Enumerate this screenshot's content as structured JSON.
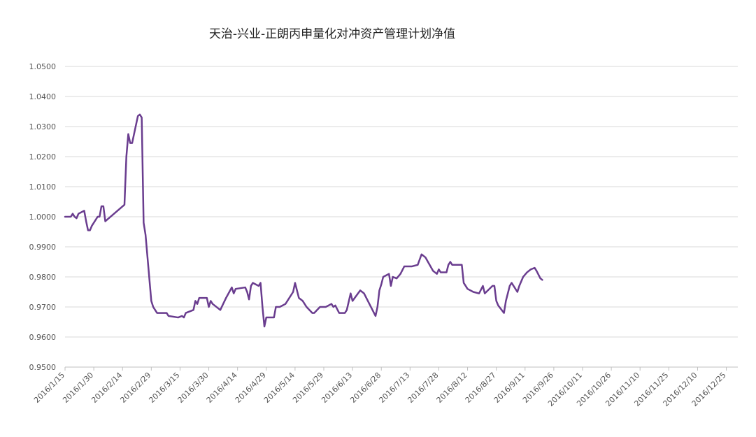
{
  "chart_data": {
    "type": "line",
    "title": "天治-兴业-正朗丙申量化对冲资产管理计划净值",
    "xlabel": "",
    "ylabel": "",
    "x_range": [
      "2016-01-15",
      "2016-12-31"
    ],
    "ylim": [
      0.95,
      1.05
    ],
    "grid": true,
    "legend": "none",
    "line_color": "#6a3d8f",
    "y_ticks": [
      "0.9500",
      "0.9600",
      "0.9700",
      "0.9800",
      "0.9900",
      "1.0000",
      "1.0100",
      "1.0200",
      "1.0300",
      "1.0400",
      "1.0500"
    ],
    "x_ticks": [
      "2016/1/15",
      "2016/1/30",
      "2016/2/14",
      "2016/2/29",
      "2016/3/15",
      "2016/3/30",
      "2016/4/14",
      "2016/4/29",
      "2016/5/14",
      "2016/5/29",
      "2016/6/13",
      "2016/6/28",
      "2016/7/13",
      "2016/7/28",
      "2016/8/12",
      "2016/8/27",
      "2016/9/11",
      "2016/9/26",
      "2016/10/11",
      "2016/10/26",
      "2016/11/10",
      "2016/11/25",
      "2016/12/10",
      "2016/12/25"
    ],
    "series": [
      {
        "points": [
          [
            "2016-01-15",
            1.0
          ],
          [
            "2016-01-18",
            1.0
          ],
          [
            "2016-01-19",
            1.001
          ],
          [
            "2016-01-20",
            1.0
          ],
          [
            "2016-01-21",
            0.9995
          ],
          [
            "2016-01-22",
            1.001
          ],
          [
            "2016-01-25",
            1.002
          ],
          [
            "2016-01-26",
            0.9985
          ],
          [
            "2016-01-27",
            0.9955
          ],
          [
            "2016-01-28",
            0.9955
          ],
          [
            "2016-01-29",
            0.997
          ],
          [
            "2016-02-01",
            1.0
          ],
          [
            "2016-02-02",
            1.0
          ],
          [
            "2016-02-03",
            1.0035
          ],
          [
            "2016-02-04",
            1.0035
          ],
          [
            "2016-02-05",
            0.9985
          ],
          [
            "2016-02-15",
            1.004
          ],
          [
            "2016-02-16",
            1.02
          ],
          [
            "2016-02-17",
            1.0275
          ],
          [
            "2016-02-18",
            1.0245
          ],
          [
            "2016-02-19",
            1.0245
          ],
          [
            "2016-02-22",
            1.0335
          ],
          [
            "2016-02-23",
            1.034
          ],
          [
            "2016-02-24",
            1.033
          ],
          [
            "2016-02-25",
            0.998
          ],
          [
            "2016-02-26",
            0.994
          ],
          [
            "2016-02-29",
            0.972
          ],
          [
            "2016-03-01",
            0.97
          ],
          [
            "2016-03-02",
            0.969
          ],
          [
            "2016-03-03",
            0.968
          ],
          [
            "2016-03-08",
            0.968
          ],
          [
            "2016-03-09",
            0.967
          ],
          [
            "2016-03-14",
            0.9665
          ],
          [
            "2016-03-16",
            0.967
          ],
          [
            "2016-03-17",
            0.9665
          ],
          [
            "2016-03-18",
            0.968
          ],
          [
            "2016-03-22",
            0.969
          ],
          [
            "2016-03-23",
            0.972
          ],
          [
            "2016-03-24",
            0.971
          ],
          [
            "2016-03-25",
            0.973
          ],
          [
            "2016-03-28",
            0.973
          ],
          [
            "2016-03-29",
            0.973
          ],
          [
            "2016-03-30",
            0.97
          ],
          [
            "2016-03-31",
            0.972
          ],
          [
            "2016-04-01",
            0.971
          ],
          [
            "2016-04-05",
            0.969
          ],
          [
            "2016-04-08",
            0.973
          ],
          [
            "2016-04-11",
            0.9765
          ],
          [
            "2016-04-12",
            0.9745
          ],
          [
            "2016-04-13",
            0.976
          ],
          [
            "2016-04-18",
            0.9765
          ],
          [
            "2016-04-19",
            0.975
          ],
          [
            "2016-04-20",
            0.9725
          ],
          [
            "2016-04-21",
            0.977
          ],
          [
            "2016-04-22",
            0.978
          ],
          [
            "2016-04-25",
            0.977
          ],
          [
            "2016-04-26",
            0.978
          ],
          [
            "2016-04-27",
            0.97
          ],
          [
            "2016-04-28",
            0.9635
          ],
          [
            "2016-04-29",
            0.9665
          ],
          [
            "2016-05-03",
            0.9665
          ],
          [
            "2016-05-04",
            0.97
          ],
          [
            "2016-05-05",
            0.97
          ],
          [
            "2016-05-06",
            0.97
          ],
          [
            "2016-05-09",
            0.971
          ],
          [
            "2016-05-13",
            0.975
          ],
          [
            "2016-05-14",
            0.978
          ],
          [
            "2016-05-16",
            0.973
          ],
          [
            "2016-05-18",
            0.972
          ],
          [
            "2016-05-20",
            0.97
          ],
          [
            "2016-05-23",
            0.968
          ],
          [
            "2016-05-24",
            0.968
          ],
          [
            "2016-05-27",
            0.97
          ],
          [
            "2016-05-30",
            0.97
          ],
          [
            "2016-06-02",
            0.971
          ],
          [
            "2016-06-03",
            0.97
          ],
          [
            "2016-06-04",
            0.9705
          ],
          [
            "2016-06-06",
            0.968
          ],
          [
            "2016-06-09",
            0.968
          ],
          [
            "2016-06-10",
            0.969
          ],
          [
            "2016-06-12",
            0.9745
          ],
          [
            "2016-06-13",
            0.972
          ],
          [
            "2016-06-17",
            0.9755
          ],
          [
            "2016-06-19",
            0.9745
          ],
          [
            "2016-06-25",
            0.967
          ],
          [
            "2016-06-26",
            0.97
          ],
          [
            "2016-06-27",
            0.9755
          ],
          [
            "2016-06-28",
            0.9775
          ],
          [
            "2016-06-29",
            0.98
          ],
          [
            "2016-07-02",
            0.981
          ],
          [
            "2016-07-03",
            0.977
          ],
          [
            "2016-07-04",
            0.98
          ],
          [
            "2016-07-06",
            0.9795
          ],
          [
            "2016-07-08",
            0.981
          ],
          [
            "2016-07-10",
            0.9835
          ],
          [
            "2016-07-14",
            0.9835
          ],
          [
            "2016-07-17",
            0.984
          ],
          [
            "2016-07-19",
            0.9875
          ],
          [
            "2016-07-21",
            0.9865
          ],
          [
            "2016-07-25",
            0.982
          ],
          [
            "2016-07-26",
            0.9815
          ],
          [
            "2016-07-27",
            0.981
          ],
          [
            "2016-07-28",
            0.9825
          ],
          [
            "2016-07-29",
            0.9815
          ],
          [
            "2016-08-01",
            0.9815
          ],
          [
            "2016-08-02",
            0.984
          ],
          [
            "2016-08-03",
            0.985
          ],
          [
            "2016-08-04",
            0.984
          ],
          [
            "2016-08-08",
            0.984
          ],
          [
            "2016-08-09",
            0.984
          ],
          [
            "2016-08-10",
            0.978
          ],
          [
            "2016-08-12",
            0.976
          ],
          [
            "2016-08-15",
            0.975
          ],
          [
            "2016-08-18",
            0.9745
          ],
          [
            "2016-08-20",
            0.977
          ],
          [
            "2016-08-21",
            0.9745
          ],
          [
            "2016-08-25",
            0.977
          ],
          [
            "2016-08-26",
            0.977
          ],
          [
            "2016-08-27",
            0.972
          ],
          [
            "2016-08-28",
            0.9705
          ],
          [
            "2016-08-31",
            0.968
          ],
          [
            "2016-09-01",
            0.972
          ],
          [
            "2016-09-03",
            0.977
          ],
          [
            "2016-09-04",
            0.978
          ],
          [
            "2016-09-07",
            0.975
          ],
          [
            "2016-09-08",
            0.977
          ],
          [
            "2016-09-10",
            0.98
          ],
          [
            "2016-09-12",
            0.9815
          ],
          [
            "2016-09-14",
            0.9825
          ],
          [
            "2016-09-16",
            0.983
          ],
          [
            "2016-09-17",
            0.982
          ],
          [
            "2016-09-19",
            0.9795
          ],
          [
            "2016-09-20",
            0.979
          ]
        ]
      }
    ]
  }
}
